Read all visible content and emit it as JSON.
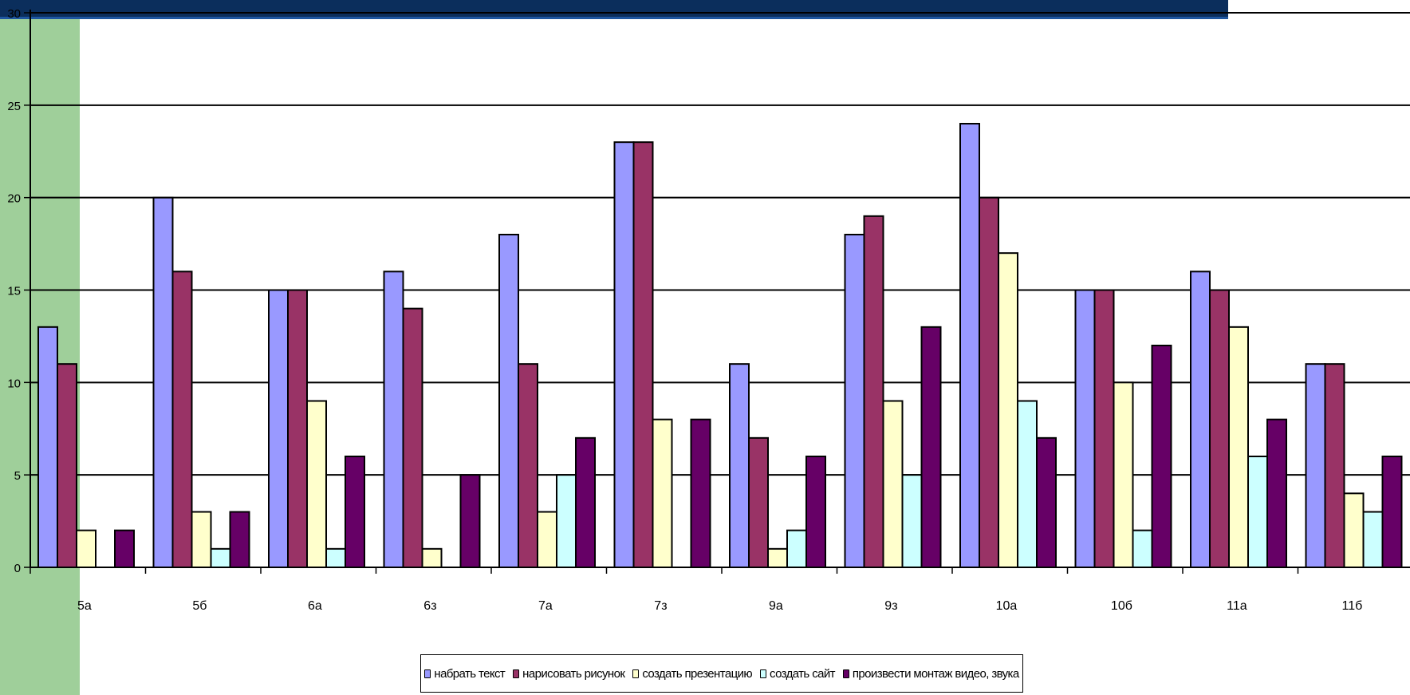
{
  "chart_data": {
    "type": "bar",
    "categories": [
      "5а",
      "5б",
      "6а",
      "6з",
      "7а",
      "7з",
      "9а",
      "9з",
      "10а",
      "10б",
      "11а",
      "11б"
    ],
    "series": [
      {
        "name": "набрать текст",
        "color": "#9999ff",
        "values": [
          13,
          20,
          15,
          16,
          18,
          23,
          11,
          18,
          24,
          15,
          16,
          11
        ]
      },
      {
        "name": "нарисовать рисунок",
        "color": "#993366",
        "values": [
          11,
          16,
          15,
          14,
          11,
          23,
          7,
          19,
          20,
          15,
          15,
          11
        ]
      },
      {
        "name": "создать презентацию",
        "color": "#ffffcc",
        "values": [
          2,
          3,
          9,
          1,
          3,
          8,
          1,
          9,
          17,
          10,
          13,
          4
        ]
      },
      {
        "name": "создать сайт",
        "color": "#ccffff",
        "values": [
          0,
          1,
          1,
          0,
          5,
          0,
          2,
          5,
          9,
          2,
          6,
          3
        ]
      },
      {
        "name": "произвести монтаж видео, звука",
        "color": "#660066",
        "values": [
          2,
          3,
          6,
          5,
          7,
          8,
          6,
          13,
          7,
          12,
          8,
          6
        ]
      }
    ],
    "y_ticks": [
      "0",
      "5",
      "10",
      "15",
      "20",
      "25",
      "30"
    ],
    "ylim": [
      0,
      30
    ],
    "grid": true,
    "legend_position": "bottom",
    "title": "",
    "xlabel": "",
    "ylabel": ""
  }
}
